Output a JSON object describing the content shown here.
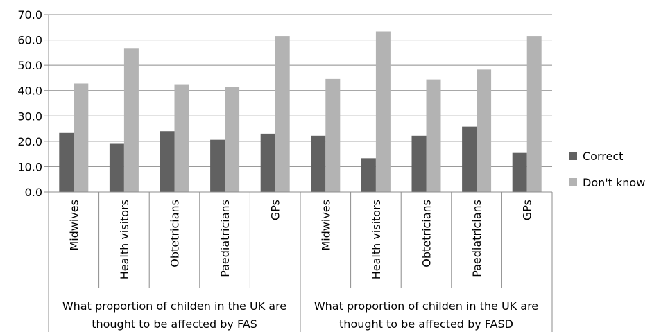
{
  "chart_data": {
    "type": "bar",
    "y_ticks": [
      "0.0",
      "10.0",
      "20.0",
      "30.0",
      "40.0",
      "50.0",
      "60.0",
      "70.0"
    ],
    "ylim": [
      0,
      70
    ],
    "grid": true,
    "legend_position": "right",
    "groups": [
      {
        "label": "What proportion of childen in the UK are thought to be affected by FAS",
        "label_lines": [
          "What proportion of childen in the UK are",
          "thought to be affected by FAS"
        ],
        "categories": [
          "Midwives",
          "Health visitors",
          "Obtetricians",
          "Paediatricians",
          "GPs"
        ]
      },
      {
        "label": "What proportion of childen in the UK are thought to be affected by FASD",
        "label_lines": [
          "What proportion of childen in the UK are",
          "thought to be affected by FASD"
        ],
        "categories": [
          "Midwives",
          "Health visitors",
          "Obtetricians",
          "Paediatricians",
          "GPs"
        ]
      }
    ],
    "series": [
      {
        "name": "Correct",
        "color": "#616161",
        "values": [
          23.3,
          19.0,
          24.0,
          20.6,
          23.0,
          22.2,
          13.3,
          22.2,
          25.8,
          15.4
        ]
      },
      {
        "name": "Don't know",
        "color": "#b3b3b3",
        "values": [
          42.8,
          56.8,
          42.5,
          41.3,
          61.5,
          44.6,
          63.3,
          44.4,
          48.3,
          61.5
        ]
      }
    ]
  }
}
